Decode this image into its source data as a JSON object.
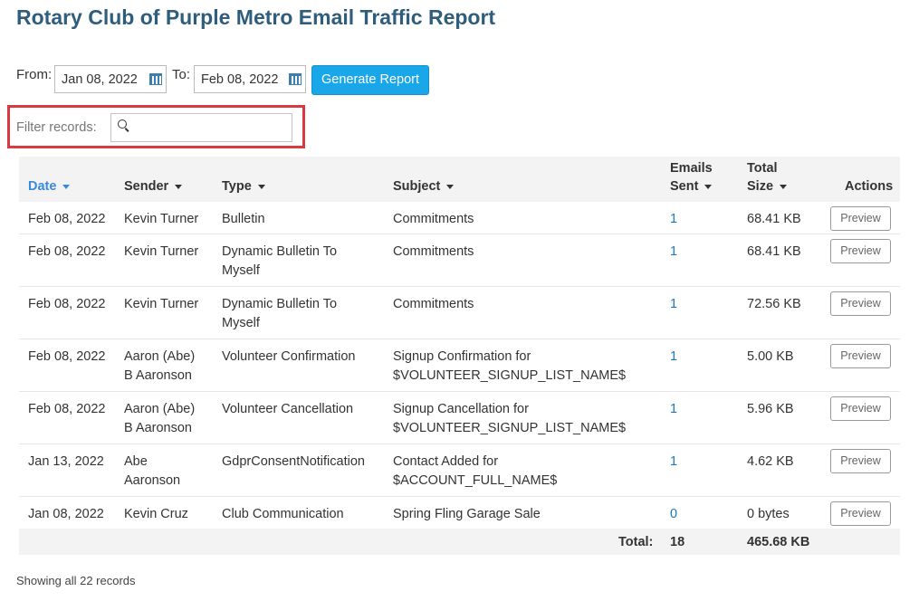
{
  "page": {
    "title": "Rotary Club of Purple Metro Email Traffic Report"
  },
  "filters": {
    "from_label": "From:",
    "from_value": "Jan 08, 2022",
    "to_label": "To:",
    "to_value": "Feb 08, 2022",
    "generate_label": "Generate Report",
    "filter_label": "Filter records:",
    "filter_value": ""
  },
  "table": {
    "headers": {
      "date": "Date",
      "sender": "Sender",
      "type": "Type",
      "subject": "Subject",
      "emails_sent_1": "Emails",
      "emails_sent_2": "Sent",
      "total_size_1": "Total",
      "total_size_2": "Size",
      "actions": "Actions"
    },
    "rows": [
      {
        "date": "Feb 08, 2022",
        "sender": [
          "Kevin Turner"
        ],
        "type": [
          "Bulletin"
        ],
        "subject": [
          "Commitments"
        ],
        "sent": "1",
        "size": "68.41 KB",
        "action": "Preview"
      },
      {
        "date": "Feb 08, 2022",
        "sender": [
          "Kevin Turner"
        ],
        "type": [
          "Dynamic Bulletin To",
          "Myself"
        ],
        "subject": [
          "Commitments"
        ],
        "sent": "1",
        "size": "68.41 KB",
        "action": "Preview"
      },
      {
        "date": "Feb 08, 2022",
        "sender": [
          "Kevin Turner"
        ],
        "type": [
          "Dynamic Bulletin To",
          "Myself"
        ],
        "subject": [
          "Commitments"
        ],
        "sent": "1",
        "size": "72.56 KB",
        "action": "Preview"
      },
      {
        "date": "Feb 08, 2022",
        "sender": [
          "Aaron (Abe)",
          "B Aaronson"
        ],
        "type": [
          "Volunteer Confirmation"
        ],
        "subject": [
          "Signup Confirmation for",
          "$VOLUNTEER_SIGNUP_LIST_NAME$"
        ],
        "sent": "1",
        "size": "5.00 KB",
        "action": "Preview"
      },
      {
        "date": "Feb 08, 2022",
        "sender": [
          "Aaron (Abe)",
          "B Aaronson"
        ],
        "type": [
          "Volunteer Cancellation"
        ],
        "subject": [
          "Signup Cancellation for",
          "$VOLUNTEER_SIGNUP_LIST_NAME$"
        ],
        "sent": "1",
        "size": "5.96 KB",
        "action": "Preview"
      },
      {
        "date": "Jan 13, 2022",
        "sender": [
          "Abe",
          "Aaronson"
        ],
        "type": [
          "GdprConsentNotification"
        ],
        "subject": [
          "Contact Added for",
          "$ACCOUNT_FULL_NAME$"
        ],
        "sent": "1",
        "size": "4.62 KB",
        "action": "Preview"
      },
      {
        "date": "Jan 08, 2022",
        "sender": [
          "Kevin Cruz"
        ],
        "type": [
          "Club Communication"
        ],
        "subject": [
          "Spring Fling Garage Sale"
        ],
        "sent": "0",
        "size": "0 bytes",
        "action": "Preview"
      }
    ],
    "footer": {
      "label": "Total:",
      "sent": "18",
      "size": "465.68 KB"
    }
  },
  "status": {
    "records_text": "Showing all 22 records"
  },
  "colors": {
    "title": "#2f5d7c",
    "accent": "#1aa7ea",
    "link": "#1a78b9",
    "highlight": "#d93a3f"
  }
}
